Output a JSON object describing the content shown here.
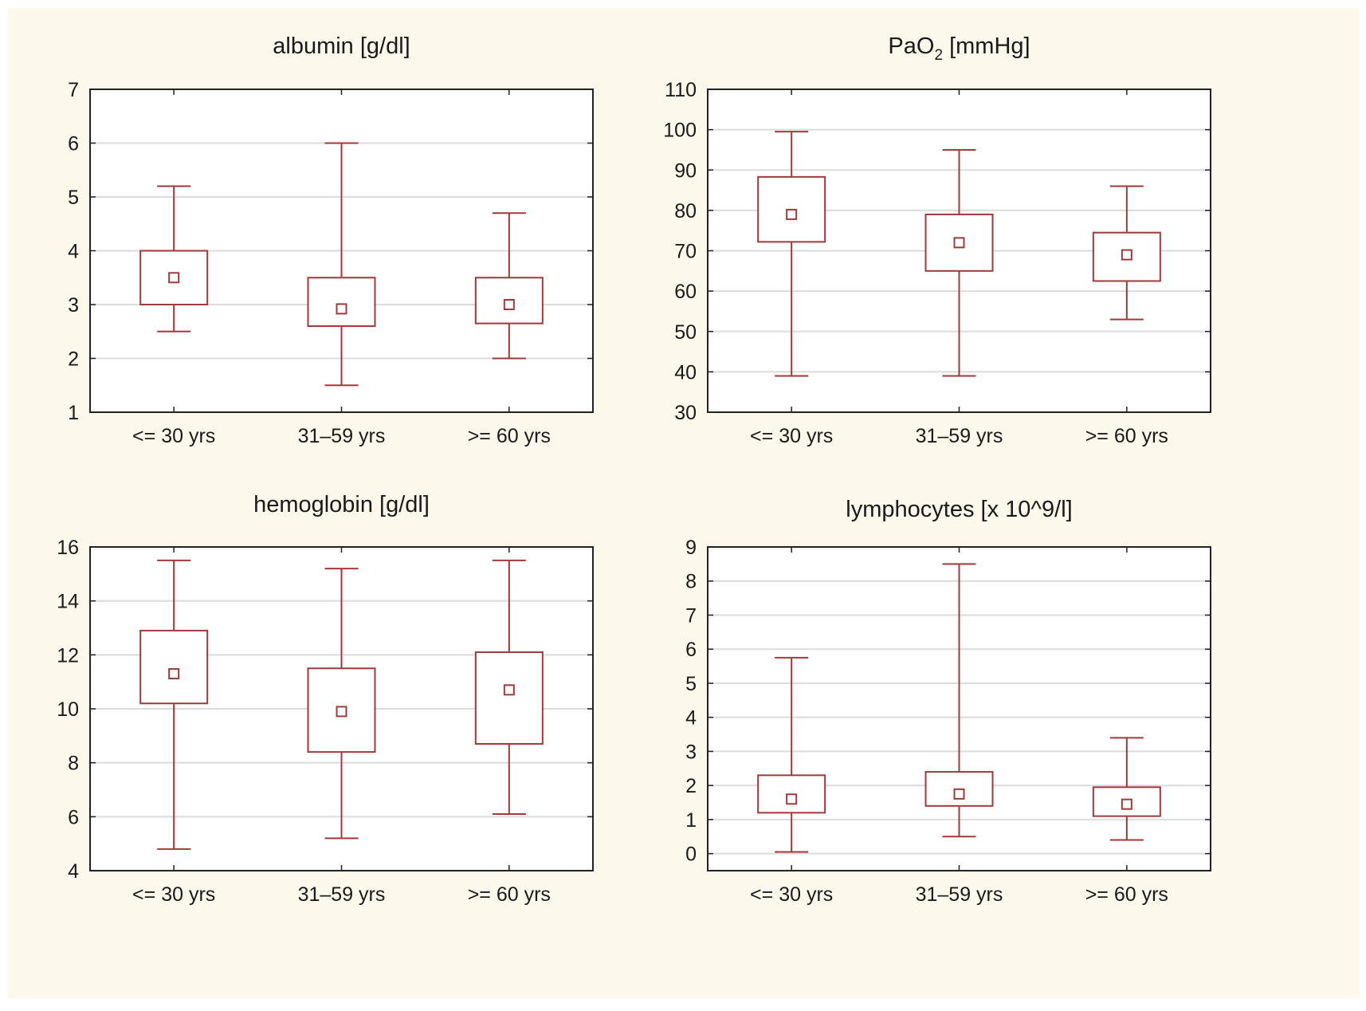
{
  "chart_data": [
    {
      "type": "box",
      "title": "albumin [g/dl]",
      "title_parts": [
        "albumin [g/dl]"
      ],
      "categories": [
        "<= 30 yrs",
        "31–59 yrs",
        ">= 60 yrs"
      ],
      "ylim": [
        1,
        7
      ],
      "yticks": [
        "1",
        "2",
        "3",
        "4",
        "5",
        "6",
        "7"
      ],
      "grid": true,
      "color": "#a03a3a",
      "series": [
        {
          "name": "<= 30 yrs",
          "whisker_min": 2.5,
          "q1": 3.0,
          "median": 3.5,
          "q3": 4.0,
          "whisker_max": 5.2
        },
        {
          "name": "31–59 yrs",
          "whisker_min": 1.5,
          "q1": 2.6,
          "median": 2.92,
          "q3": 3.5,
          "whisker_max": 6.0
        },
        {
          "name": ">= 60 yrs",
          "whisker_min": 2.0,
          "q1": 2.65,
          "median": 3.0,
          "q3": 3.5,
          "whisker_max": 4.7
        }
      ]
    },
    {
      "type": "box",
      "title": "PaO2 [mmHg]",
      "title_parts": [
        "PaO",
        "2",
        " [mmHg]"
      ],
      "categories": [
        "<= 30 yrs",
        "31–59 yrs",
        ">= 60 yrs"
      ],
      "ylim": [
        30,
        110
      ],
      "yticks": [
        "30",
        "40",
        "50",
        "60",
        "70",
        "80",
        "90",
        "100",
        "110"
      ],
      "grid": true,
      "color": "#a03a3a",
      "series": [
        {
          "name": "<= 30 yrs",
          "whisker_min": 39,
          "q1": 72.2,
          "median": 79,
          "q3": 88.3,
          "whisker_max": 99.5
        },
        {
          "name": "31–59 yrs",
          "whisker_min": 39,
          "q1": 65,
          "median": 72,
          "q3": 79,
          "whisker_max": 95
        },
        {
          "name": ">= 60 yrs",
          "whisker_min": 53,
          "q1": 62.5,
          "median": 69,
          "q3": 74.5,
          "whisker_max": 86
        }
      ]
    },
    {
      "type": "box",
      "title": "hemoglobin [g/dl]",
      "title_parts": [
        "hemoglobin [g/dl]"
      ],
      "categories": [
        "<= 30 yrs",
        "31–59 yrs",
        ">= 60 yrs"
      ],
      "ylim": [
        4,
        16
      ],
      "yticks": [
        "4",
        "6",
        "8",
        "10",
        "12",
        "14",
        "16"
      ],
      "grid": true,
      "color": "#a03a3a",
      "series": [
        {
          "name": "<= 30 yrs",
          "whisker_min": 4.8,
          "q1": 10.2,
          "median": 11.3,
          "q3": 12.9,
          "whisker_max": 15.5
        },
        {
          "name": "31–59 yrs",
          "whisker_min": 5.2,
          "q1": 8.4,
          "median": 9.9,
          "q3": 11.5,
          "whisker_max": 15.2
        },
        {
          "name": ">= 60 yrs",
          "whisker_min": 6.1,
          "q1": 8.7,
          "median": 10.7,
          "q3": 12.1,
          "whisker_max": 15.5
        }
      ]
    },
    {
      "type": "box",
      "title": "lymphocytes [x 10^9/l]",
      "title_parts": [
        "lymphocytes [x 10^9/l]"
      ],
      "categories": [
        "<= 30 yrs",
        "31–59 yrs",
        ">= 60 yrs"
      ],
      "ylim": [
        -0.5,
        9
      ],
      "yticks": [
        "0",
        "1",
        "2",
        "3",
        "4",
        "5",
        "6",
        "7",
        "8",
        "9"
      ],
      "grid": true,
      "color": "#a03a3a",
      "series": [
        {
          "name": "<= 30 yrs",
          "whisker_min": 0.05,
          "q1": 1.2,
          "median": 1.6,
          "q3": 2.3,
          "whisker_max": 5.75
        },
        {
          "name": "31–59 yrs",
          "whisker_min": 0.5,
          "q1": 1.4,
          "median": 1.75,
          "q3": 2.4,
          "whisker_max": 8.5
        },
        {
          "name": ">= 60 yrs",
          "whisker_min": 0.4,
          "q1": 1.1,
          "median": 1.45,
          "q3": 1.95,
          "whisker_max": 3.4
        }
      ]
    }
  ]
}
